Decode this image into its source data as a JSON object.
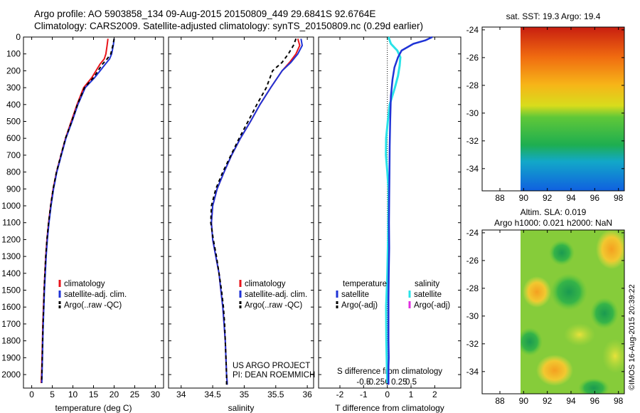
{
  "header": {
    "line1": "Argo profile: AO 5903858_134 09-Aug-2015 20150809_449 29.6841S 92.6764E",
    "line2": "Climatology: CARS2009. Satellite-adjusted climatology: synTS_20150809.nc (0.29d earlier)"
  },
  "colors": {
    "clim": "#e8141b",
    "sat": "#1f33d6",
    "argo": "#000000",
    "sat_s": "#29e3e8",
    "argo_s": "#e02ee0"
  },
  "chart_data": [
    {
      "id": "temperature",
      "type": "line",
      "xlabel": "temperature (deg C)",
      "ylabel": "",
      "xlim": [
        -2,
        32
      ],
      "ylim": [
        2080,
        0
      ],
      "xticks": [
        0,
        5,
        10,
        15,
        20,
        25,
        30
      ],
      "xtick_labels": [
        "0",
        "5",
        "10",
        "15",
        "20",
        "25",
        "30"
      ],
      "yticks": [
        0,
        100,
        200,
        300,
        400,
        500,
        600,
        700,
        800,
        900,
        1000,
        1100,
        1200,
        1300,
        1400,
        1500,
        1600,
        1700,
        1800,
        1900,
        2000
      ],
      "ytick_labels": [
        "0",
        "100",
        "200",
        "300",
        "400",
        "500",
        "600",
        "700",
        "800",
        "900",
        "1000",
        "1100",
        "1200",
        "1300",
        "1400",
        "1500",
        "1600",
        "1700",
        "1800",
        "1900",
        "2000"
      ],
      "legend": [
        "climatology",
        "satellite-adj. clim.",
        "Argo(..raw -QC)"
      ],
      "series": [
        {
          "name": "climatology",
          "x": [
            18.5,
            18.3,
            18.0,
            17.6,
            16.6,
            15.6,
            14.6,
            12.6,
            11.0,
            9.6,
            8.2,
            7.1,
            6.0,
            5.2,
            4.6,
            4.1,
            3.7,
            3.4,
            3.2,
            3.0,
            2.85,
            2.7,
            2.6,
            2.5,
            2.4,
            2.3
          ],
          "y": [
            10,
            50,
            100,
            130,
            160,
            200,
            240,
            300,
            400,
            500,
            600,
            700,
            800,
            900,
            1000,
            1100,
            1200,
            1300,
            1400,
            1500,
            1600,
            1700,
            1800,
            1900,
            2000,
            2050
          ]
        },
        {
          "name": "satellite-adj. clim.",
          "x": [
            20.0,
            19.8,
            19.4,
            18.9,
            17.9,
            16.6,
            15.3,
            13.0,
            11.2,
            9.8,
            8.3,
            7.2,
            6.1,
            5.3,
            4.7,
            4.2,
            3.8,
            3.5,
            3.3,
            3.1,
            2.95,
            2.8,
            2.7,
            2.6,
            2.5,
            2.45
          ],
          "y": [
            10,
            50,
            100,
            130,
            160,
            200,
            240,
            300,
            400,
            500,
            600,
            700,
            800,
            900,
            1000,
            1100,
            1200,
            1300,
            1400,
            1500,
            1600,
            1700,
            1800,
            1900,
            2000,
            2050
          ]
        },
        {
          "name": "Argo(..raw -QC)",
          "x": [
            20.0,
            19.7,
            19.2,
            18.3,
            17.2,
            16.1,
            15.0,
            12.8,
            11.1,
            9.7,
            8.2,
            7.1,
            6.0,
            5.2,
            4.6,
            4.1,
            3.7,
            3.4,
            3.2,
            3.0,
            2.9,
            2.75,
            2.65,
            2.55,
            2.45,
            2.4
          ],
          "y": [
            10,
            50,
            100,
            130,
            160,
            200,
            240,
            300,
            400,
            500,
            600,
            700,
            800,
            900,
            1000,
            1100,
            1200,
            1300,
            1400,
            1500,
            1600,
            1700,
            1800,
            1900,
            2000,
            2050
          ]
        }
      ]
    },
    {
      "id": "salinity",
      "type": "line",
      "xlabel": "salinity",
      "ylabel": "",
      "xlim": [
        33.8,
        36.1
      ],
      "ylim": [
        2080,
        0
      ],
      "xticks": [
        34,
        34.5,
        35,
        35.5,
        36
      ],
      "xtick_labels": [
        "34",
        "34.5",
        "35",
        "35.5",
        "36"
      ],
      "legend": [
        "climatology",
        "satellite-adj. clim.",
        "Argo(..raw -QC)"
      ],
      "annotation": [
        "US ARGO PROJECT",
        "PI: DEAN ROEMMICH"
      ],
      "series": [
        {
          "name": "climatology",
          "x": [
            35.85,
            35.88,
            35.82,
            35.72,
            35.6,
            35.42,
            35.25,
            35.1,
            34.94,
            34.8,
            34.68,
            34.57,
            34.5,
            34.48,
            34.5,
            34.55,
            34.6,
            34.63,
            34.66,
            34.68,
            34.7,
            34.71,
            34.72,
            34.73,
            34.73
          ],
          "y": [
            10,
            50,
            100,
            150,
            200,
            300,
            400,
            500,
            600,
            700,
            800,
            900,
            1000,
            1100,
            1200,
            1300,
            1400,
            1500,
            1600,
            1700,
            1800,
            1900,
            2000,
            2050,
            2060
          ]
        },
        {
          "name": "satellite-adj. clim.",
          "x": [
            35.9,
            35.92,
            35.85,
            35.74,
            35.6,
            35.42,
            35.25,
            35.1,
            34.94,
            34.8,
            34.68,
            34.57,
            34.5,
            34.48,
            34.5,
            34.55,
            34.6,
            34.63,
            34.66,
            34.68,
            34.7,
            34.71,
            34.72,
            34.73,
            34.73
          ],
          "y": [
            10,
            50,
            100,
            150,
            200,
            300,
            400,
            500,
            600,
            700,
            800,
            900,
            1000,
            1100,
            1200,
            1300,
            1400,
            1500,
            1600,
            1700,
            1800,
            1900,
            2000,
            2050,
            2060
          ]
        },
        {
          "name": "Argo(..raw -QC)",
          "x": [
            35.82,
            35.78,
            35.7,
            35.6,
            35.45,
            35.35,
            35.2,
            35.06,
            34.92,
            34.79,
            34.66,
            34.55,
            34.48,
            34.47,
            34.51,
            34.56,
            34.6,
            34.64,
            34.67,
            34.69,
            34.7,
            34.71,
            34.72,
            34.72,
            34.72
          ],
          "y": [
            10,
            50,
            100,
            150,
            200,
            300,
            400,
            500,
            600,
            700,
            800,
            900,
            1000,
            1100,
            1200,
            1300,
            1400,
            1500,
            1600,
            1700,
            1800,
            1900,
            2000,
            2050,
            2060
          ]
        }
      ]
    },
    {
      "id": "difference",
      "type": "line",
      "xlabel": "T difference from climatology",
      "xlabel_top": "S difference from climatology",
      "xlim": [
        -2.9,
        3.1
      ],
      "ylim": [
        2080,
        0
      ],
      "xticks": [
        -2,
        -1,
        0,
        1,
        2
      ],
      "xtick_labels": [
        "-2",
        "-1",
        "0",
        "1",
        "2"
      ],
      "s_xticks": [
        -0.5,
        -0.25,
        0,
        0.25,
        0.5
      ],
      "s_xtick_labels": [
        "-0.5",
        "-0.25",
        "0",
        "0.25",
        "0.5"
      ],
      "legend_titles": [
        "temperature",
        "salinity"
      ],
      "legend": [
        "satellite",
        "Argo(-adj)",
        "satellite",
        "Argo(-adj)"
      ],
      "series": [
        {
          "name": "temperature satellite",
          "x": [
            1.9,
            1.6,
            1.1,
            0.6,
            0.45,
            0.3,
            0.22,
            0.15,
            0.12,
            0.1,
            0.09,
            0.08,
            0.07,
            0.08,
            0.06,
            0.05,
            0.05,
            0.05,
            0.06,
            0.05,
            0.05,
            0.05,
            0.05
          ],
          "y": [
            0,
            20,
            40,
            80,
            120,
            180,
            250,
            350,
            500,
            650,
            800,
            950,
            1100,
            1250,
            1400,
            1550,
            1700,
            1800,
            1900,
            1950,
            2000,
            2040,
            2060
          ]
        },
        {
          "name": "salinity satellite",
          "x": [
            0.05,
            0.15,
            0.42,
            0.55,
            0.52,
            0.45,
            0.32,
            0.1,
            0.02,
            -0.05,
            -0.06,
            0.0,
            0.05,
            0.05,
            0.03,
            0.0,
            -0.05,
            -0.04,
            -0.02,
            0.0
          ],
          "y": [
            0,
            40,
            80,
            120,
            170,
            230,
            300,
            400,
            500,
            600,
            700,
            800,
            900,
            1000,
            1200,
            1400,
            1600,
            1800,
            1950,
            2050
          ]
        }
      ]
    },
    {
      "id": "sst_map",
      "type": "heatmap",
      "title": "sat. SST: 19.3 Argo: 19.4",
      "xlim": [
        86.5,
        98.5
      ],
      "ylim": [
        -35.6,
        -23.8
      ],
      "xticks": [
        88,
        90,
        92,
        94,
        96,
        98
      ],
      "xtick_labels": [
        "88",
        "90",
        "92",
        "94",
        "96",
        "98"
      ],
      "yticks": [
        -24,
        -26,
        -28,
        -30,
        -32,
        -34
      ],
      "ytick_labels": [
        "-24",
        "-26",
        "-28",
        "-30",
        "-32",
        "-34"
      ],
      "data_lon_min": 90
    },
    {
      "id": "sla_map",
      "type": "heatmap",
      "title_lines": [
        "Altim. SLA: 0.019",
        "Argo h1000: 0.021 h2000: NaN"
      ],
      "xlim": [
        86.5,
        98.5
      ],
      "ylim": [
        -35.6,
        -23.8
      ],
      "xticks": [
        88,
        90,
        92,
        94,
        96,
        98
      ],
      "xtick_labels": [
        "88",
        "90",
        "92",
        "94",
        "96",
        "98"
      ],
      "yticks": [
        -24,
        -26,
        -28,
        -30,
        -32,
        -34
      ],
      "ytick_labels": [
        "-24",
        "-26",
        "-28",
        "-30",
        "-32",
        "-34"
      ],
      "data_lon_min": 90
    }
  ],
  "footer": {
    "stamp": "©IMOS 16-Aug-2015 20:39:22"
  }
}
